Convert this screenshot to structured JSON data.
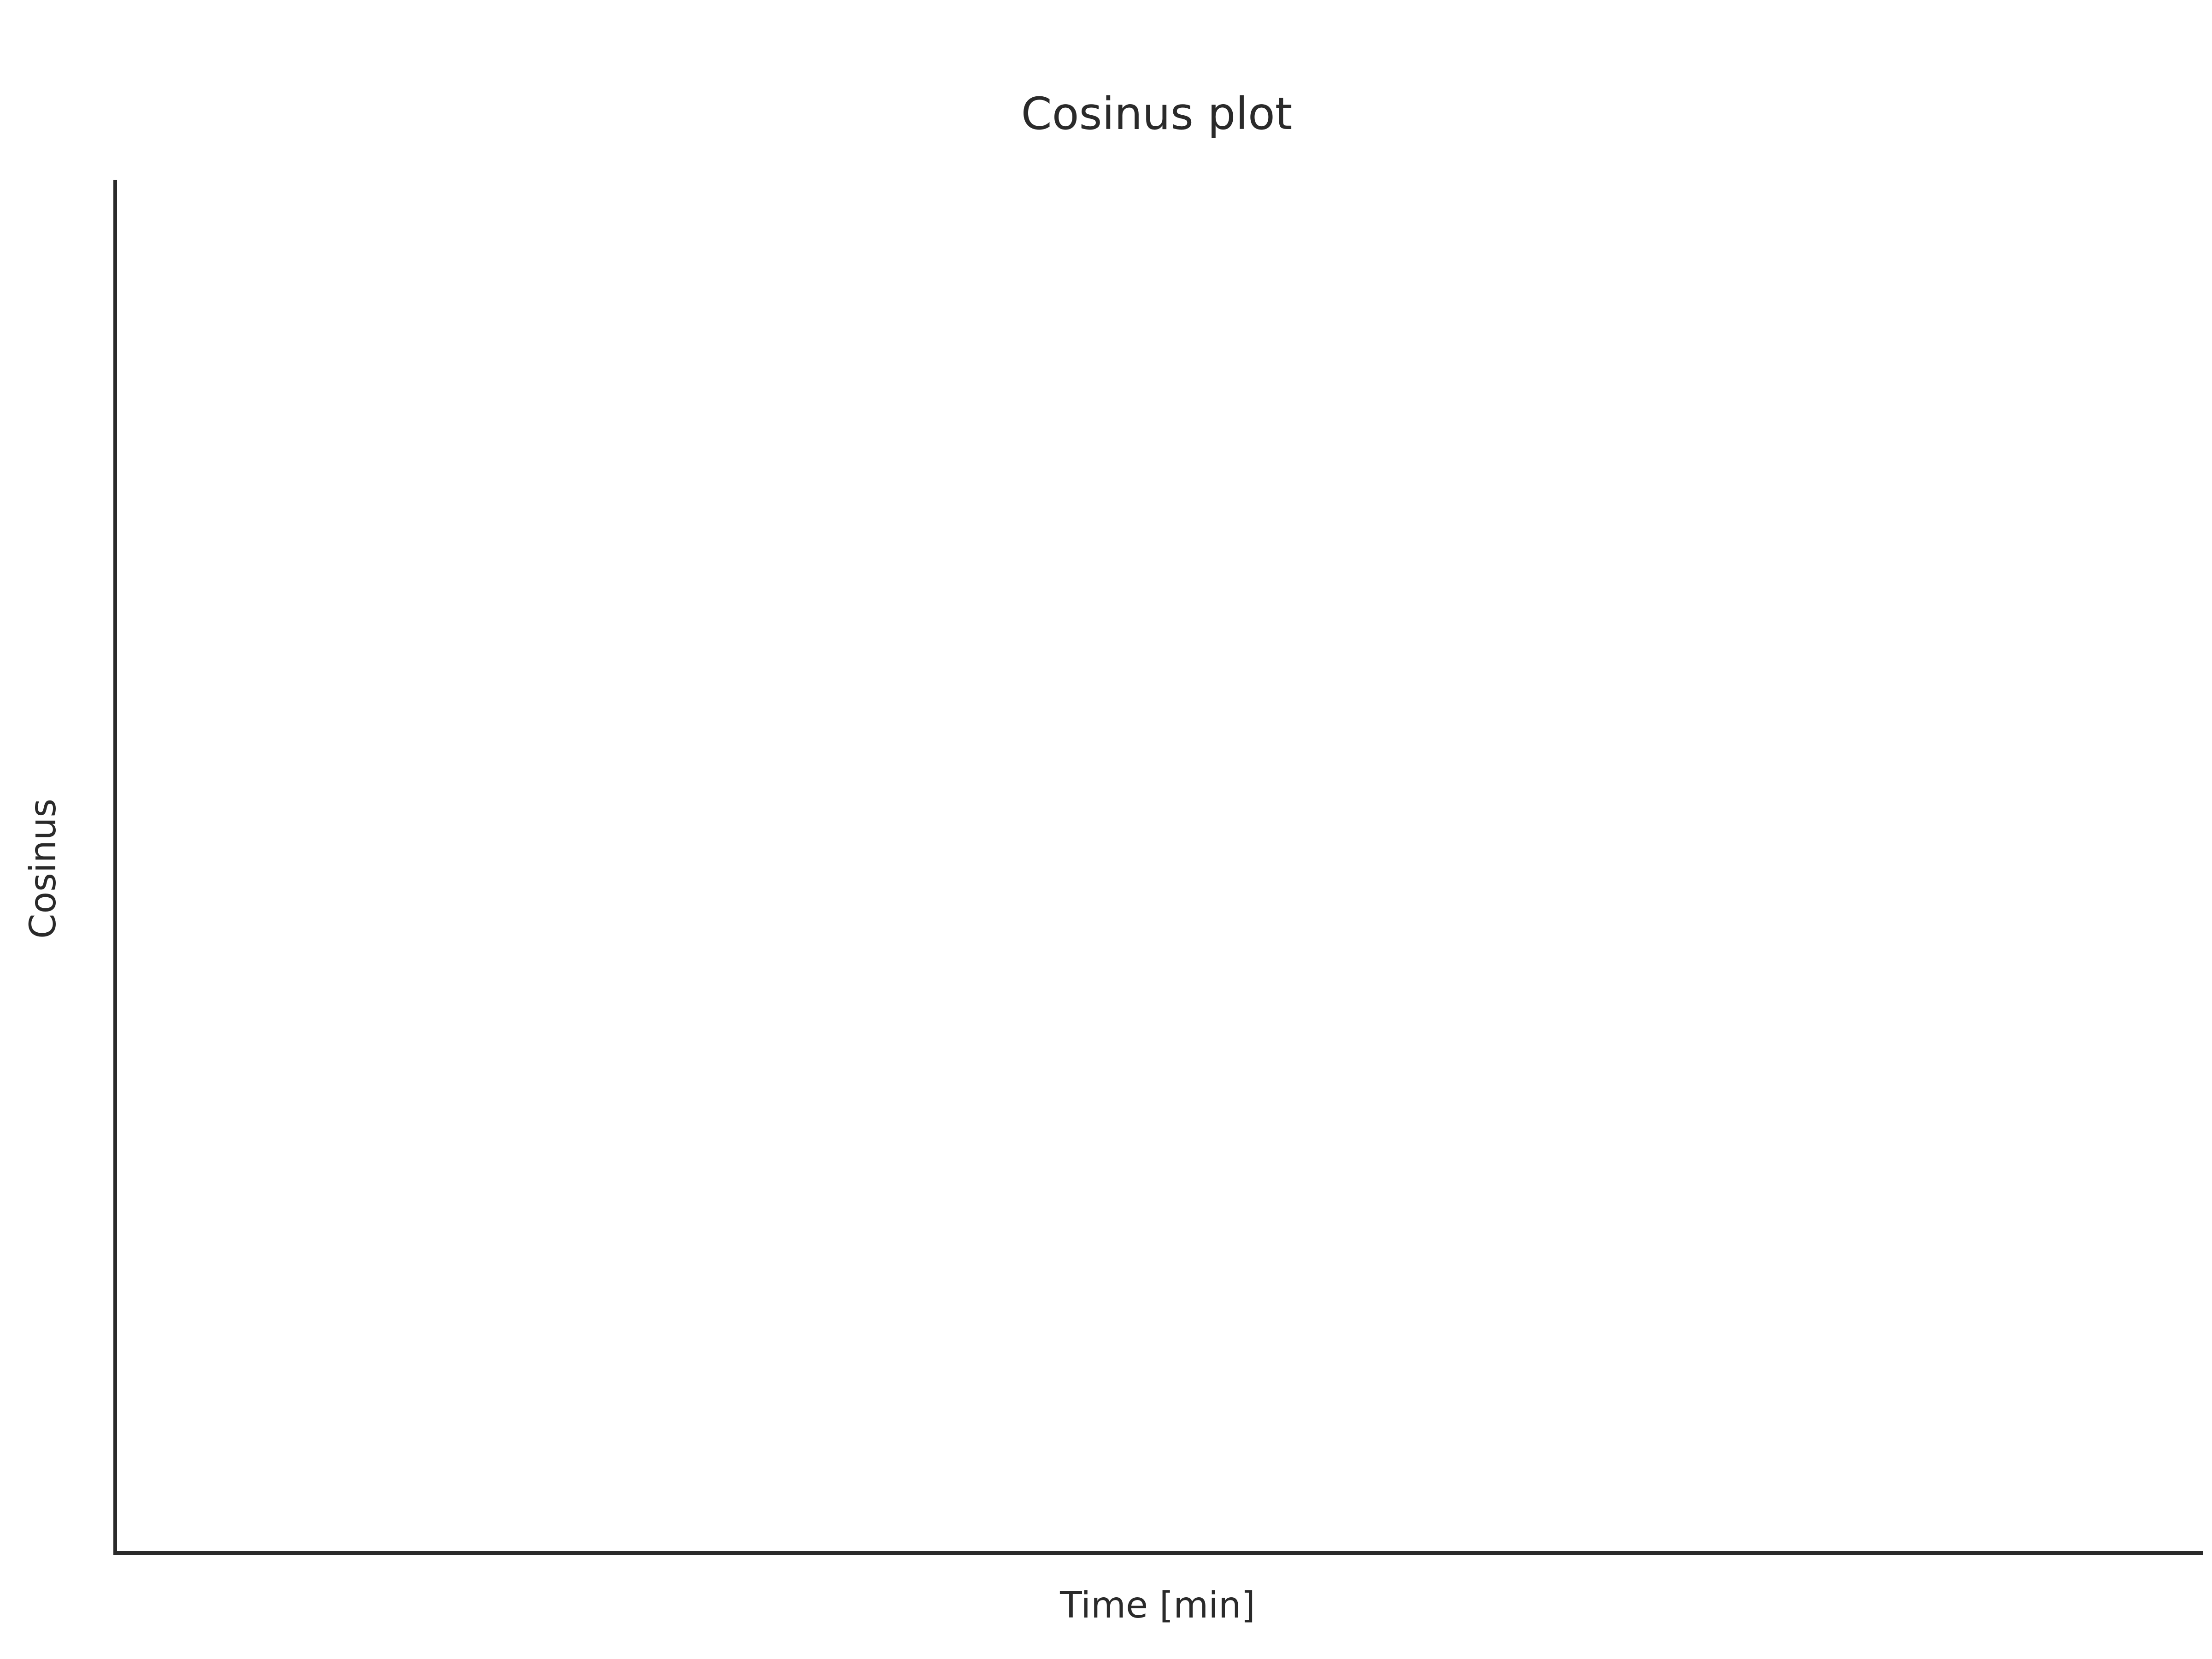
{
  "chart_data": {
    "type": "line",
    "title": "Cosinus plot",
    "xlabel": "Time [min]",
    "ylabel": "Cosinus",
    "x": [],
    "series": [],
    "grid": false,
    "legend": "none"
  },
  "colors": {
    "text": "#2a2a2a",
    "axis": "#2a2a2a",
    "background": "#ffffff"
  }
}
